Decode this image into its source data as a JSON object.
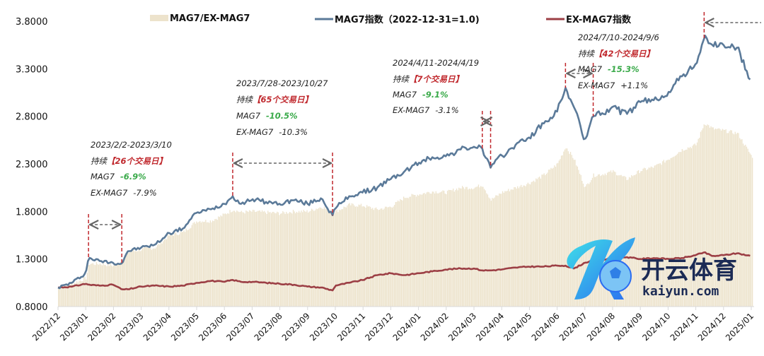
{
  "chart_data": {
    "type": "line",
    "title": "",
    "xlabel": "",
    "ylabel": "",
    "ylim": [
      0.8,
      3.8
    ],
    "yticks": [
      "3.8000",
      "3.3000",
      "2.8000",
      "2.3000",
      "1.8000",
      "1.3000",
      "0.8000"
    ],
    "ytick_values": [
      3.8,
      3.3,
      2.8,
      2.3,
      1.8,
      1.3,
      0.8
    ],
    "xticks": [
      "2022/12",
      "2023/01",
      "2023/02",
      "2023/03",
      "2023/04",
      "2023/05",
      "2023/06",
      "2023/07",
      "2023/08",
      "2023/09",
      "2023/10",
      "2023/11",
      "2023/12",
      "2024/01",
      "2024/02",
      "2024/03",
      "2024/04",
      "2024/05",
      "2024/06",
      "2024/07",
      "2024/08",
      "2024/09",
      "2024/10",
      "2024/11",
      "2024/12",
      "2025/01"
    ],
    "grid": false,
    "legend_position": "top",
    "legend": [
      {
        "label": "MAG7/EX-MAG7",
        "type": "bar",
        "color": "#ede3cc"
      },
      {
        "label": "MAG7指数（2022-12-31=1.0)",
        "type": "line",
        "color": "#5b7a99"
      },
      {
        "label": "EX-MAG7指数",
        "type": "line",
        "color": "#9c3f45"
      }
    ],
    "x_months": [
      0,
      0.5,
      1,
      1.1,
      1.5,
      2,
      2.3,
      2.5,
      3,
      3.5,
      4,
      4.5,
      5,
      5.5,
      6,
      6.3,
      6.6,
      7,
      7.5,
      8,
      8.5,
      9,
      9.5,
      9.9,
      10,
      10.5,
      11,
      11.5,
      12,
      12.5,
      13,
      13.5,
      14,
      14.5,
      15,
      15.3,
      15.6,
      16,
      16.5,
      17,
      17.5,
      18,
      18.3,
      18.6,
      19,
      19.3,
      19.6,
      20,
      20.5,
      21,
      21.5,
      22,
      22.5,
      23,
      23.3,
      23.6,
      24,
      24.5,
      25
    ],
    "series": [
      {
        "name": "MAG7指数",
        "color": "#5b7a99",
        "values": [
          1.0,
          1.05,
          1.15,
          1.31,
          1.28,
          1.26,
          1.25,
          1.38,
          1.42,
          1.45,
          1.57,
          1.62,
          1.79,
          1.82,
          1.88,
          1.96,
          1.88,
          1.93,
          1.9,
          1.88,
          1.92,
          1.88,
          1.94,
          1.76,
          1.83,
          1.96,
          2.0,
          2.05,
          2.14,
          2.22,
          2.31,
          2.37,
          2.38,
          2.45,
          2.48,
          2.46,
          2.26,
          2.38,
          2.5,
          2.58,
          2.72,
          2.85,
          3.1,
          2.9,
          2.55,
          2.8,
          2.83,
          2.9,
          2.82,
          2.95,
          2.97,
          3.05,
          3.22,
          3.35,
          3.62,
          3.55,
          3.55,
          3.52,
          3.15
        ]
      },
      {
        "name": "EX-MAG7指数",
        "color": "#9c3f45",
        "values": [
          1.0,
          1.01,
          1.04,
          1.03,
          1.02,
          1.03,
          0.98,
          0.98,
          1.01,
          1.02,
          1.01,
          1.02,
          1.05,
          1.07,
          1.06,
          1.08,
          1.06,
          1.06,
          1.05,
          1.04,
          1.03,
          1.01,
          1.0,
          0.97,
          1.02,
          1.05,
          1.08,
          1.13,
          1.15,
          1.13,
          1.15,
          1.17,
          1.19,
          1.2,
          1.2,
          1.18,
          1.18,
          1.19,
          1.21,
          1.22,
          1.22,
          1.23,
          1.23,
          1.2,
          1.26,
          1.29,
          1.29,
          1.31,
          1.32,
          1.3,
          1.31,
          1.3,
          1.31,
          1.34,
          1.37,
          1.33,
          1.34,
          1.36,
          1.33
        ]
      },
      {
        "name": "MAG7/EX-MAG7",
        "color": "#ede3cc",
        "type": "bar",
        "values": [
          1.0,
          1.04,
          1.1,
          1.25,
          1.25,
          1.23,
          1.28,
          1.37,
          1.4,
          1.42,
          1.55,
          1.58,
          1.7,
          1.7,
          1.77,
          1.82,
          1.79,
          1.8,
          1.79,
          1.78,
          1.8,
          1.8,
          1.85,
          1.79,
          1.8,
          1.87,
          1.86,
          1.82,
          1.85,
          1.95,
          1.98,
          2.01,
          2.0,
          2.05,
          2.05,
          2.08,
          1.92,
          2.0,
          2.05,
          2.1,
          2.18,
          2.3,
          2.48,
          2.35,
          2.05,
          2.18,
          2.19,
          2.22,
          2.14,
          2.23,
          2.27,
          2.35,
          2.45,
          2.5,
          2.73,
          2.67,
          2.65,
          2.62,
          2.38
        ]
      }
    ],
    "annotations": [
      {
        "period": "2023/2/2-2023/3/10",
        "duration_prefix": "持续",
        "duration": "【26个交易日】",
        "mag7_label": "MAG7",
        "mag7_change": "-6.9%",
        "exmag7_label": "EX-MAG7",
        "exmag7_change": "-7.9%",
        "start_month": 1.1,
        "end_month": 2.3
      },
      {
        "period": "2023/7/28-2023/10/27",
        "duration_prefix": "持续",
        "duration": "【65个交易日】",
        "mag7_label": "MAG7",
        "mag7_change": "-10.5%",
        "exmag7_label": "EX-MAG7",
        "exmag7_change": "-10.3%",
        "start_month": 6.3,
        "end_month": 9.9
      },
      {
        "period": "2024/4/11-2024/4/19",
        "duration_prefix": "持续",
        "duration": "【7个交易日】",
        "mag7_label": "MAG7",
        "mag7_change": "-9.1%",
        "exmag7_label": "EX-MAG7",
        "exmag7_change": "-3.1%",
        "start_month": 15.3,
        "end_month": 15.6
      },
      {
        "period": "2024/7/10-2024/9/6",
        "duration_prefix": "持续",
        "duration": "【42个交易日】",
        "mag7_label": "MAG7",
        "mag7_change": "-15.3%",
        "exmag7_label": "EX-MAG7",
        "exmag7_change": "+1.1%",
        "start_month": 18.3,
        "end_month": 19.3
      },
      {
        "period": "",
        "start_month": 23.3,
        "end_month": 25.5
      }
    ]
  },
  "watermark": {
    "cn": "开云体育",
    "en": "kaiyun.com"
  }
}
